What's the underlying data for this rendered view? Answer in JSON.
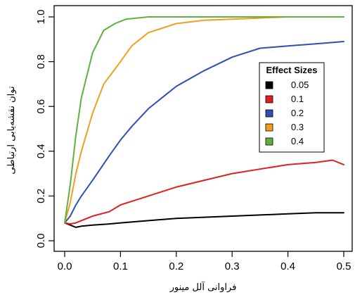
{
  "chart_data": {
    "type": "line",
    "xlabel": "فراوانی آلل مینور",
    "ylabel": "توان نقشه‌یابی ارتباطی",
    "xlim": [
      0,
      0.5
    ],
    "ylim": [
      0,
      1
    ],
    "xticks": [
      "0.0",
      "0.1",
      "0.2",
      "0.3",
      "0.4",
      "0.5"
    ],
    "yticks": [
      "0.0",
      "0.2",
      "0.4",
      "0.6",
      "0.8",
      "1.0"
    ],
    "grid": false,
    "legend": {
      "title": "Effect Sizes",
      "placement": "right",
      "entries": [
        "0.05",
        "0.1",
        "0.2",
        "0.3",
        "0.4"
      ]
    },
    "series": [
      {
        "name": "0.05",
        "color": "#000000",
        "x": [
          0.0,
          0.01,
          0.02,
          0.03,
          0.05,
          0.08,
          0.1,
          0.15,
          0.2,
          0.25,
          0.3,
          0.35,
          0.4,
          0.45,
          0.5
        ],
        "y": [
          0.08,
          0.07,
          0.06,
          0.065,
          0.07,
          0.075,
          0.08,
          0.09,
          0.1,
          0.105,
          0.11,
          0.115,
          0.12,
          0.125,
          0.125
        ]
      },
      {
        "name": "0.1",
        "color": "#e02020",
        "x": [
          0.0,
          0.01,
          0.02,
          0.03,
          0.05,
          0.08,
          0.1,
          0.15,
          0.2,
          0.25,
          0.3,
          0.35,
          0.4,
          0.45,
          0.48,
          0.5
        ],
        "y": [
          0.08,
          0.075,
          0.08,
          0.09,
          0.11,
          0.13,
          0.16,
          0.2,
          0.24,
          0.27,
          0.3,
          0.32,
          0.34,
          0.35,
          0.36,
          0.34
        ]
      },
      {
        "name": "0.2",
        "color": "#3050b0",
        "x": [
          0.0,
          0.01,
          0.02,
          0.03,
          0.05,
          0.08,
          0.1,
          0.12,
          0.15,
          0.18,
          0.2,
          0.25,
          0.3,
          0.35,
          0.4,
          0.45,
          0.5
        ],
        "y": [
          0.08,
          0.11,
          0.16,
          0.2,
          0.27,
          0.38,
          0.45,
          0.51,
          0.59,
          0.65,
          0.69,
          0.76,
          0.82,
          0.86,
          0.87,
          0.88,
          0.89
        ]
      },
      {
        "name": "0.3",
        "color": "#f0a020",
        "x": [
          0.0,
          0.01,
          0.02,
          0.03,
          0.05,
          0.07,
          0.1,
          0.12,
          0.15,
          0.2,
          0.25,
          0.3,
          0.35,
          0.4,
          0.5
        ],
        "y": [
          0.08,
          0.17,
          0.3,
          0.4,
          0.57,
          0.7,
          0.8,
          0.87,
          0.93,
          0.97,
          0.985,
          0.99,
          0.995,
          1.0,
          1.0
        ]
      },
      {
        "name": "0.4",
        "color": "#60b040",
        "x": [
          0.0,
          0.01,
          0.02,
          0.03,
          0.05,
          0.07,
          0.09,
          0.11,
          0.15,
          0.2,
          0.3,
          0.5
        ],
        "y": [
          0.08,
          0.25,
          0.47,
          0.64,
          0.84,
          0.94,
          0.97,
          0.99,
          1.0,
          1.0,
          1.0,
          1.0
        ]
      }
    ]
  }
}
